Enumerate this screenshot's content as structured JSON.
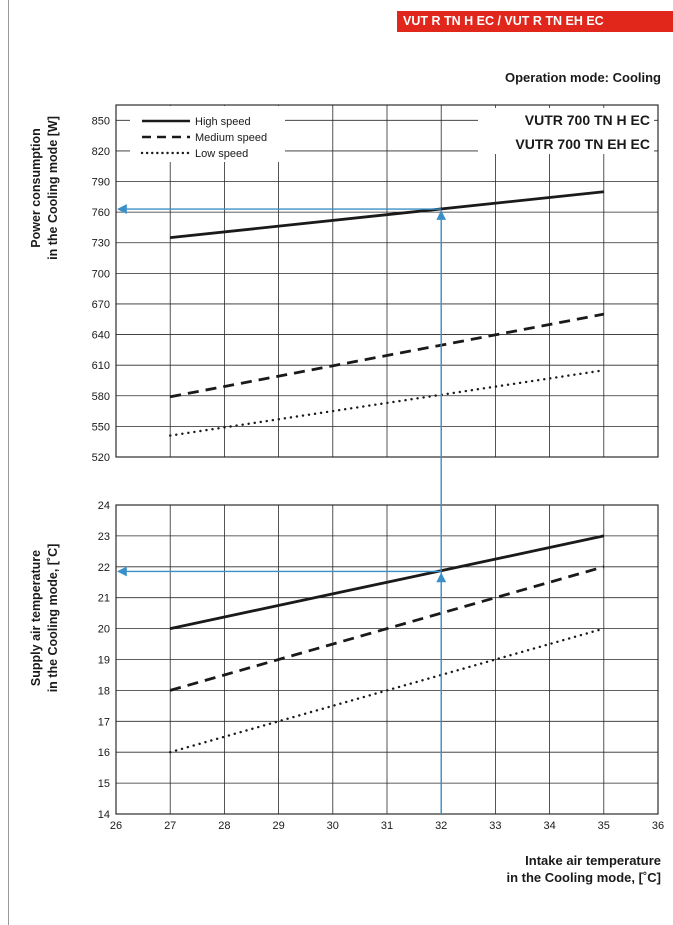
{
  "header": {
    "badge": "VUT R TN H EC / VUT R TN EH EC"
  },
  "mode_label": "Operation mode: Cooling",
  "models": [
    "VUTR 700 TN H EC",
    "VUTR 700 TN EH EC"
  ],
  "legend": [
    "High speed",
    "Medium speed",
    "Low speed"
  ],
  "x_axis": {
    "label_line1": "Intake air temperature",
    "label_line2": "in the Cooling mode, [˚C]",
    "ticks": [
      26,
      27,
      28,
      29,
      30,
      31,
      32,
      33,
      34,
      35,
      36
    ],
    "range": [
      26,
      36
    ]
  },
  "colors": {
    "badge": "#e1261c",
    "guide": "#3a8fc8",
    "series": "#1a1a1a"
  },
  "chart_data": [
    {
      "type": "line",
      "ylabel_line1": "Power consumption",
      "ylabel_line2": "in the Cooling mode [W]",
      "ylim": [
        520,
        865
      ],
      "yticks": [
        520,
        550,
        580,
        610,
        640,
        670,
        700,
        730,
        760,
        790,
        820,
        850
      ],
      "grid": true,
      "legend_position": "top-left",
      "series": [
        {
          "name": "High speed",
          "style": "solid",
          "x": [
            27,
            35
          ],
          "values": [
            735,
            780
          ]
        },
        {
          "name": "Medium speed",
          "style": "dashed",
          "x": [
            27,
            35
          ],
          "values": [
            579,
            660
          ]
        },
        {
          "name": "Low speed",
          "style": "dotted",
          "x": [
            27,
            35
          ],
          "values": [
            541,
            605
          ]
        }
      ],
      "guide": {
        "x": 32,
        "y": 763
      }
    },
    {
      "type": "line",
      "ylabel_line1": "Supply air temperature",
      "ylabel_line2": "in the Cooling mode, [˚C]",
      "ylim": [
        14,
        24
      ],
      "yticks": [
        14,
        15,
        16,
        17,
        18,
        19,
        20,
        21,
        22,
        23,
        24
      ],
      "grid": true,
      "series": [
        {
          "name": "High speed",
          "style": "solid",
          "x": [
            27,
            35
          ],
          "values": [
            20,
            23
          ]
        },
        {
          "name": "Medium speed",
          "style": "dashed",
          "x": [
            27,
            35
          ],
          "values": [
            18,
            22
          ]
        },
        {
          "name": "Low speed",
          "style": "dotted",
          "x": [
            27,
            35
          ],
          "values": [
            16,
            20
          ]
        }
      ],
      "guide": {
        "x": 32,
        "y": 21.85
      }
    }
  ]
}
